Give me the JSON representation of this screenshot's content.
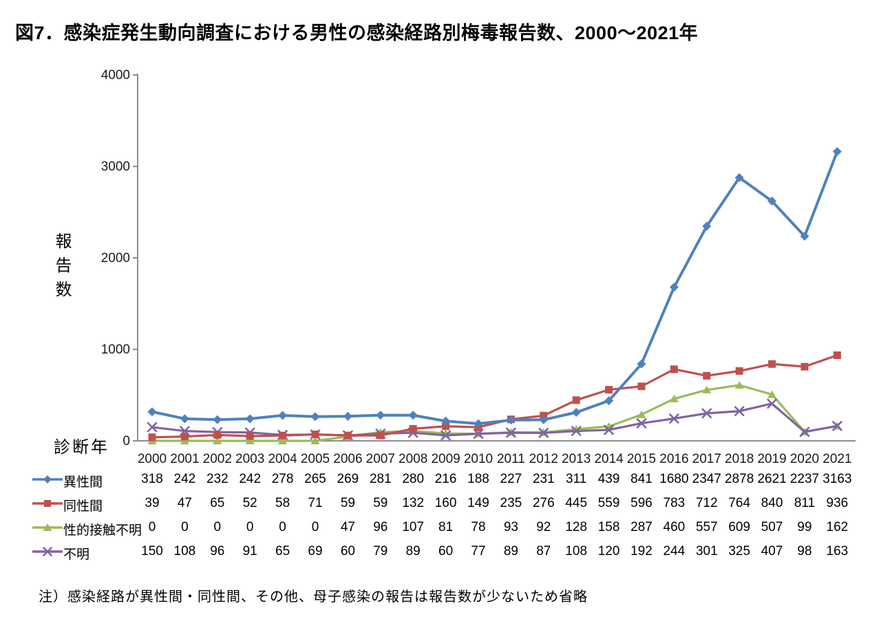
{
  "title": "図7．感染症発生動向調査における男性の感染経路別梅毒報告数、2000～2021年",
  "note": "注）感染経路が異性間・同性間、その他、母子感染の報告は報告数が少ないため省略",
  "colors": {
    "axis": "#8C8C8C",
    "text": "#1a1a1a"
  },
  "chart_data": {
    "type": "line",
    "title": "図7．感染症発生動向調査における男性の感染経路別梅毒報告数、2000～2021年",
    "xlabel": "診断年",
    "ylabel": "報告数",
    "ylim": [
      0,
      4000
    ],
    "yticks": [
      0,
      1000,
      2000,
      3000,
      4000
    ],
    "grid": false,
    "legend_position": "bottom-left-table",
    "categories": [
      "2000",
      "2001",
      "2002",
      "2003",
      "2004",
      "2005",
      "2006",
      "2007",
      "2008",
      "2009",
      "2010",
      "2011",
      "2012",
      "2013",
      "2014",
      "2015",
      "2016",
      "2017",
      "2018",
      "2019",
      "2020",
      "2021"
    ],
    "series": [
      {
        "name": "異性間",
        "color": "#4F81BD",
        "marker": "diamond",
        "values": [
          318,
          242,
          232,
          242,
          278,
          265,
          269,
          281,
          280,
          216,
          188,
          227,
          231,
          311,
          439,
          841,
          1680,
          2347,
          2878,
          2621,
          2237,
          3163
        ]
      },
      {
        "name": "同性間",
        "color": "#C0504D",
        "marker": "square",
        "values": [
          39,
          47,
          65,
          52,
          58,
          71,
          59,
          59,
          132,
          160,
          149,
          235,
          276,
          445,
          559,
          596,
          783,
          712,
          764,
          840,
          811,
          936
        ]
      },
      {
        "name": "性的接触不明",
        "color": "#9BBB59",
        "marker": "triangle",
        "values": [
          0,
          0,
          0,
          0,
          0,
          0,
          47,
          96,
          107,
          81,
          78,
          93,
          92,
          128,
          158,
          287,
          460,
          557,
          609,
          507,
          99,
          162
        ]
      },
      {
        "name": "不明",
        "color": "#8064A2",
        "marker": "x",
        "values": [
          150,
          108,
          96,
          91,
          65,
          69,
          60,
          79,
          89,
          60,
          77,
          89,
          87,
          108,
          120,
          192,
          244,
          301,
          325,
          407,
          98,
          163
        ]
      }
    ]
  }
}
